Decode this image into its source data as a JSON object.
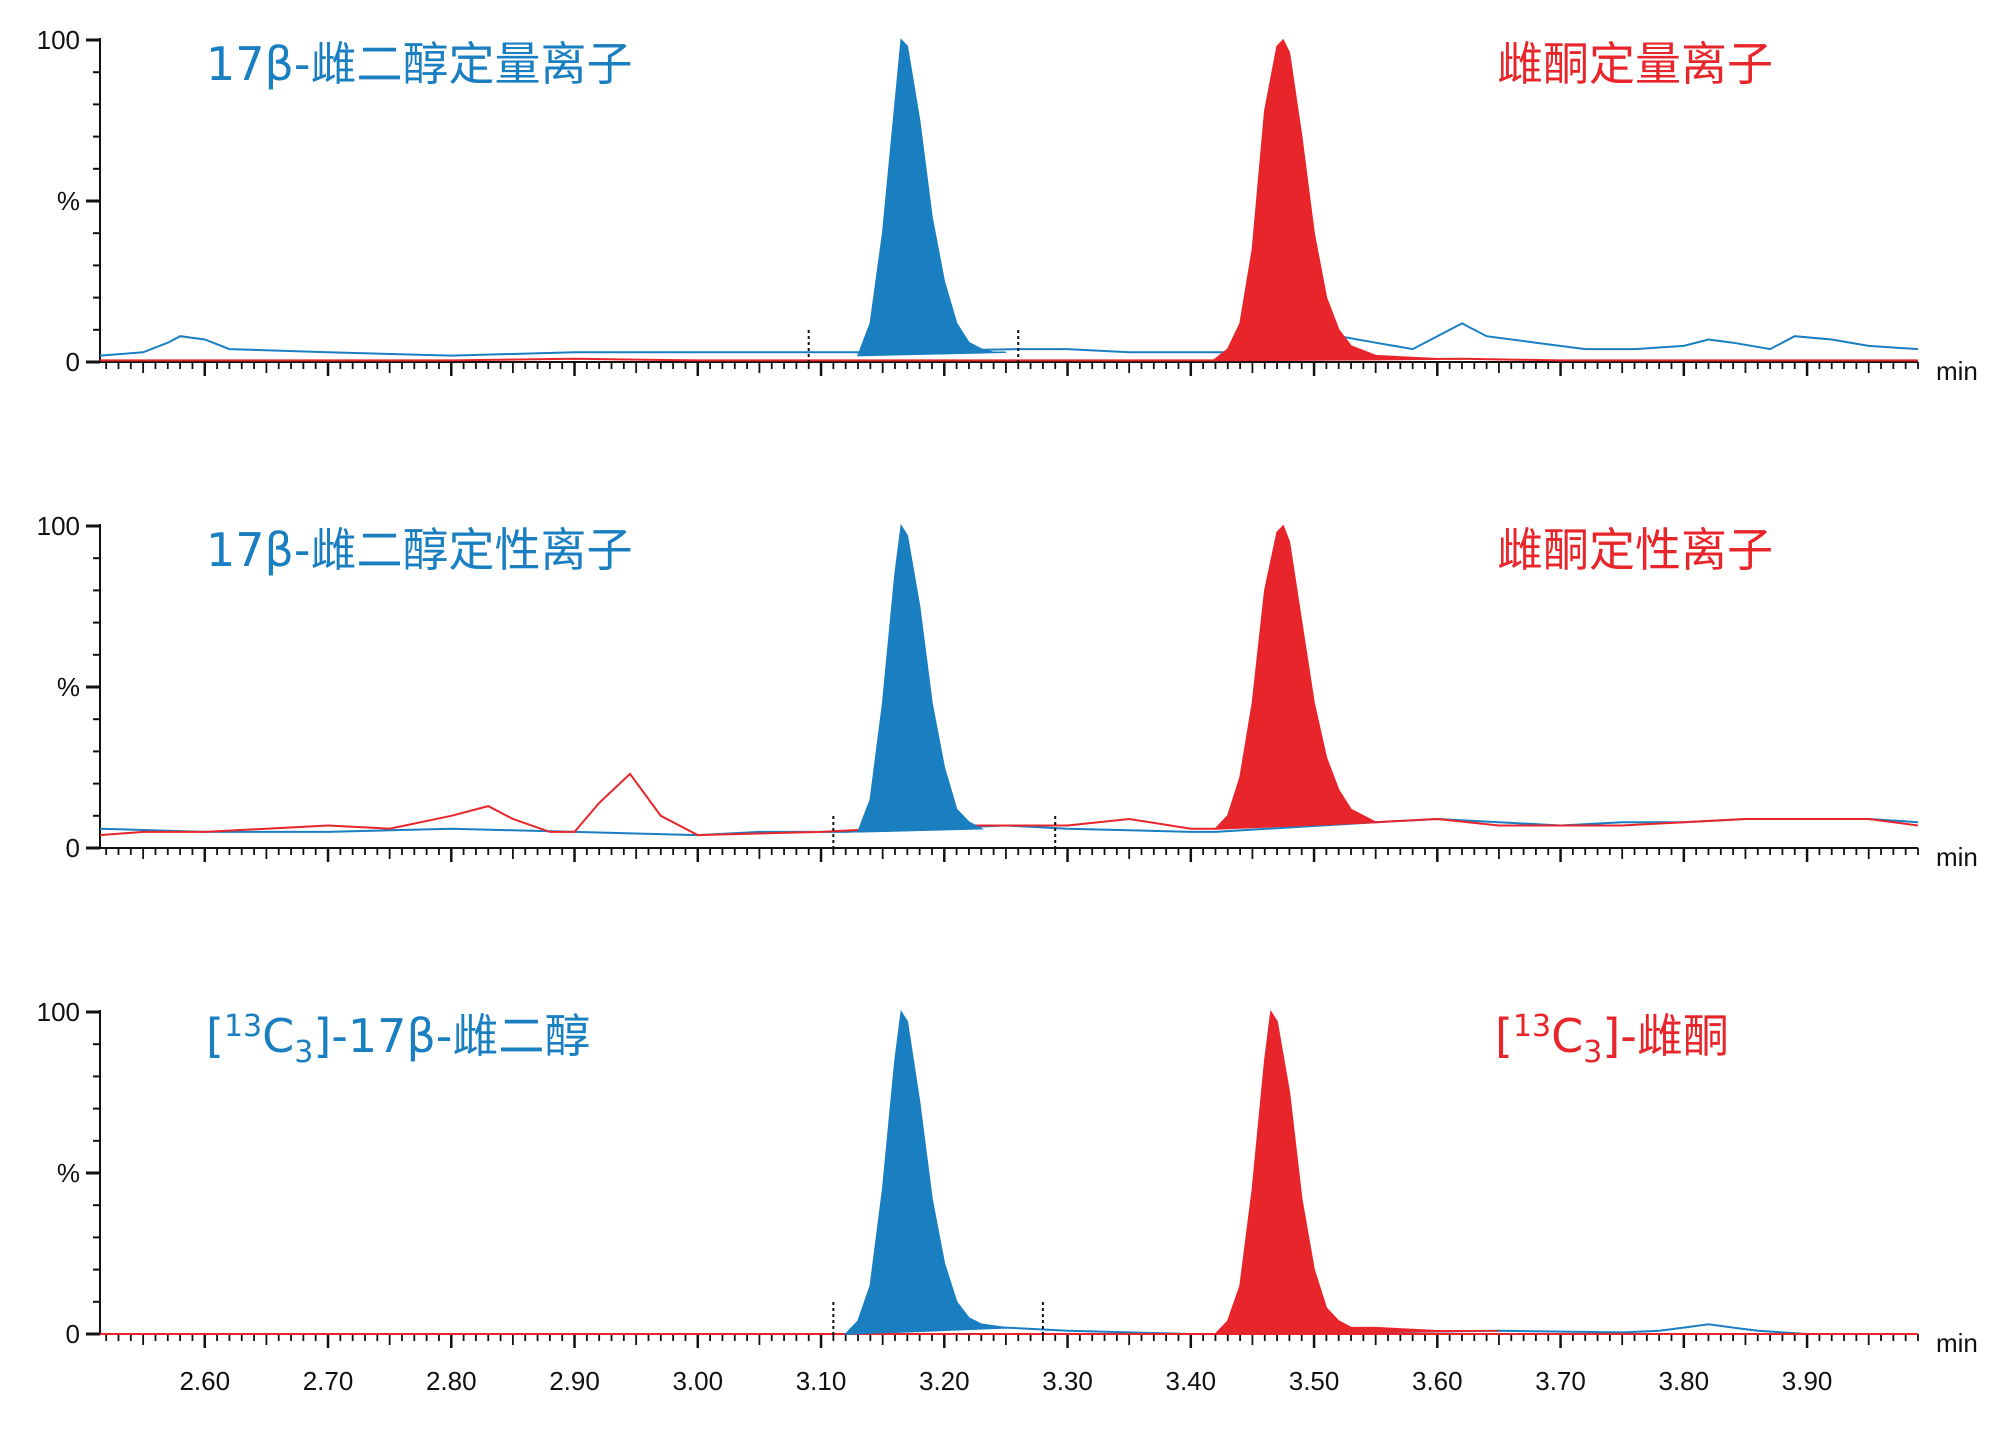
{
  "colors": {
    "blue": "#1a7fc1",
    "red": "#e8252a",
    "axis": "#111111"
  },
  "chart_data": [
    {
      "type": "line",
      "xlim": [
        2.515,
        3.99
      ],
      "ylim": [
        0,
        100
      ],
      "ytick_labels": [
        "0",
        "%",
        "100"
      ],
      "x_unit_label": "min",
      "labels": [
        {
          "text": "17β-雌二醇定量离子",
          "color": "blue",
          "align": "left"
        },
        {
          "text": "雌酮定量离子",
          "color": "red",
          "align": "left"
        }
      ],
      "peaks": [
        {
          "color": "blue",
          "filled": true,
          "x": [
            3.13,
            3.14,
            3.15,
            3.16,
            3.165,
            3.17,
            3.18,
            3.19,
            3.2,
            3.21,
            3.22,
            3.23,
            3.24,
            3.25
          ],
          "y": [
            2,
            12,
            40,
            80,
            100,
            98,
            75,
            45,
            25,
            12,
            6,
            4,
            3,
            3
          ]
        },
        {
          "color": "red",
          "filled": true,
          "x": [
            3.42,
            3.43,
            3.44,
            3.45,
            3.46,
            3.47,
            3.475,
            3.48,
            3.49,
            3.5,
            3.51,
            3.52,
            3.53,
            3.55,
            3.6,
            3.62
          ],
          "y": [
            1,
            4,
            12,
            35,
            78,
            98,
            100,
            96,
            70,
            40,
            20,
            10,
            5,
            2,
            1,
            1
          ]
        }
      ],
      "series": [
        {
          "color": "blue",
          "x": [
            2.515,
            2.55,
            2.57,
            2.58,
            2.6,
            2.62,
            2.7,
            2.8,
            2.9,
            3.0,
            3.05,
            3.1,
            3.13,
            3.26,
            3.3,
            3.35,
            3.4,
            3.43,
            3.52,
            3.55,
            3.58,
            3.6,
            3.62,
            3.64,
            3.68,
            3.72,
            3.76,
            3.8,
            3.82,
            3.84,
            3.87,
            3.89,
            3.92,
            3.95,
            3.99
          ],
          "y": [
            2,
            3,
            6,
            8,
            7,
            4,
            3,
            2,
            3,
            3,
            3,
            3,
            3,
            4,
            4,
            3,
            3,
            3,
            8,
            6,
            4,
            8,
            12,
            8,
            6,
            4,
            4,
            5,
            7,
            6,
            4,
            8,
            7,
            5,
            4
          ]
        },
        {
          "color": "red",
          "x": [
            2.515,
            2.6,
            2.7,
            2.8,
            2.9,
            3.0,
            3.1,
            3.2,
            3.3,
            3.4,
            3.42,
            3.62,
            3.7,
            3.8,
            3.9,
            3.99
          ],
          "y": [
            0.5,
            0.5,
            0.5,
            0.5,
            1,
            0.5,
            0.5,
            0.5,
            0.5,
            0.5,
            0.5,
            1,
            0.5,
            0.5,
            0.5,
            0.5
          ]
        }
      ],
      "integration_markers": [
        3.09,
        3.26
      ]
    },
    {
      "type": "line",
      "xlim": [
        2.515,
        3.99
      ],
      "ylim": [
        0,
        100
      ],
      "ytick_labels": [
        "0",
        "%",
        "100"
      ],
      "x_unit_label": "min",
      "labels": [
        {
          "text": "17β-雌二醇定性离子",
          "color": "blue",
          "align": "left"
        },
        {
          "text": "雌酮定性离子",
          "color": "red",
          "align": "left"
        }
      ],
      "peaks": [
        {
          "color": "blue",
          "filled": true,
          "x": [
            3.13,
            3.14,
            3.15,
            3.16,
            3.165,
            3.17,
            3.18,
            3.19,
            3.2,
            3.21,
            3.22,
            3.23
          ],
          "y": [
            5,
            15,
            45,
            85,
            100,
            97,
            75,
            45,
            25,
            12,
            8,
            6
          ]
        },
        {
          "color": "red",
          "filled": true,
          "x": [
            3.42,
            3.43,
            3.44,
            3.45,
            3.46,
            3.47,
            3.475,
            3.48,
            3.49,
            3.5,
            3.51,
            3.52,
            3.53,
            3.55
          ],
          "y": [
            6,
            10,
            22,
            45,
            80,
            98,
            100,
            95,
            70,
            45,
            28,
            18,
            12,
            8
          ]
        }
      ],
      "series": [
        {
          "color": "blue",
          "x": [
            2.515,
            2.6,
            2.7,
            2.8,
            2.9,
            3.0,
            3.05,
            3.1,
            3.12,
            3.25,
            3.3,
            3.4,
            3.42,
            3.55,
            3.6,
            3.65,
            3.7,
            3.75,
            3.8,
            3.85,
            3.9,
            3.95,
            3.99
          ],
          "y": [
            6,
            5,
            5,
            6,
            5,
            4,
            5,
            5,
            5,
            7,
            6,
            5,
            5,
            8,
            9,
            8,
            7,
            8,
            8,
            9,
            9,
            9,
            8
          ]
        },
        {
          "color": "red",
          "x": [
            2.515,
            2.55,
            2.6,
            2.65,
            2.7,
            2.75,
            2.8,
            2.83,
            2.85,
            2.88,
            2.9,
            2.92,
            2.945,
            2.97,
            3.0,
            3.1,
            3.2,
            3.3,
            3.35,
            3.4,
            3.42,
            3.55,
            3.6,
            3.65,
            3.7,
            3.75,
            3.8,
            3.85,
            3.9,
            3.95,
            3.99
          ],
          "y": [
            4,
            5,
            5,
            6,
            7,
            6,
            10,
            13,
            9,
            5,
            5,
            14,
            23,
            10,
            4,
            5,
            7,
            7,
            9,
            6,
            6,
            8,
            9,
            7,
            7,
            7,
            8,
            9,
            9,
            9,
            7
          ]
        }
      ],
      "integration_markers": [
        3.11,
        3.29
      ]
    },
    {
      "type": "line",
      "xlim": [
        2.515,
        3.99
      ],
      "ylim": [
        0,
        100
      ],
      "ytick_labels": [
        "0",
        "%",
        "100"
      ],
      "x_unit_label": "min",
      "xtick_labels": [
        "2.60",
        "2.70",
        "2.80",
        "2.90",
        "3.00",
        "3.10",
        "3.20",
        "3.30",
        "3.40",
        "3.50",
        "3.60",
        "3.70",
        "3.80",
        "3.90"
      ],
      "xtick_values": [
        2.6,
        2.7,
        2.8,
        2.9,
        3.0,
        3.1,
        3.2,
        3.3,
        3.4,
        3.5,
        3.6,
        3.7,
        3.8,
        3.9
      ],
      "labels": [
        {
          "text": "[13C3]-17β-雌二醇",
          "prefix": "[",
          "sup": "13",
          "base": "C",
          "sub": "3",
          "suffix": "]-17β-雌二醇",
          "color": "blue",
          "align": "left"
        },
        {
          "text": "[13C3]-雌酮",
          "prefix": "[",
          "sup": "13",
          "base": "C",
          "sub": "3",
          "suffix": "]-雌酮",
          "color": "red",
          "align": "left"
        }
      ],
      "peaks": [
        {
          "color": "blue",
          "filled": true,
          "x": [
            3.12,
            3.13,
            3.14,
            3.15,
            3.16,
            3.165,
            3.17,
            3.18,
            3.19,
            3.2,
            3.21,
            3.22,
            3.23,
            3.25
          ],
          "y": [
            0,
            4,
            15,
            45,
            85,
            100,
            97,
            72,
            42,
            22,
            10,
            5,
            3,
            2
          ]
        },
        {
          "color": "red",
          "filled": true,
          "x": [
            3.42,
            3.43,
            3.44,
            3.45,
            3.46,
            3.465,
            3.47,
            3.48,
            3.49,
            3.5,
            3.51,
            3.52,
            3.53,
            3.55,
            3.6,
            3.65
          ],
          "y": [
            0,
            4,
            15,
            45,
            85,
            100,
            97,
            75,
            42,
            20,
            8,
            4,
            2,
            2,
            1,
            1
          ]
        }
      ],
      "series": [
        {
          "color": "blue",
          "x": [
            2.515,
            3.1,
            3.12,
            3.25,
            3.3,
            3.35,
            3.4,
            3.42,
            3.65,
            3.75,
            3.78,
            3.8,
            3.82,
            3.84,
            3.86,
            3.9,
            3.99
          ],
          "y": [
            0,
            0,
            0,
            2,
            1,
            0.5,
            0,
            0,
            1,
            0.5,
            1,
            2,
            3,
            2,
            1,
            0,
            0
          ]
        },
        {
          "color": "red",
          "x": [
            2.515,
            3.99
          ],
          "y": [
            0,
            0
          ]
        }
      ],
      "integration_markers": [
        3.11,
        3.28
      ]
    }
  ]
}
